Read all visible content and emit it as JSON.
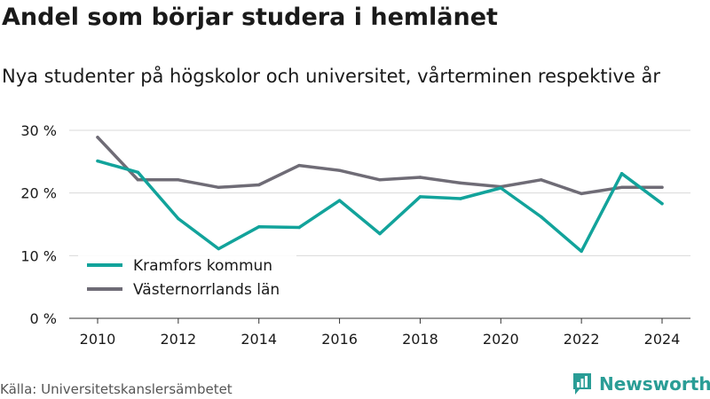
{
  "header": {
    "title": "Andel som börjar studera i hemlänet",
    "subtitle": "Nya studenter på högskolor och universitet, vårterminen respektive år"
  },
  "footer": {
    "source": "Källa: Universitetskanslersämbetet",
    "brand": "Newsworthy",
    "brand_icon": "bar-chart-logo-icon"
  },
  "colors": {
    "kramfors": "#12a39b",
    "vasternorrland": "#6f6c76",
    "grid": "#d9d9d9",
    "brand": "#2a9d96"
  },
  "chart_data": {
    "type": "line",
    "x": [
      2010,
      2011,
      2012,
      2013,
      2014,
      2015,
      2016,
      2017,
      2018,
      2019,
      2020,
      2021,
      2022,
      2023,
      2024
    ],
    "series": [
      {
        "name": "Kramfors kommun",
        "values": [
          25.1,
          23.3,
          15.9,
          11.1,
          14.6,
          14.5,
          18.8,
          13.5,
          19.4,
          19.1,
          20.8,
          16.2,
          10.7,
          23.1,
          18.3
        ]
      },
      {
        "name": "Västernorrlands län",
        "values": [
          28.9,
          22.1,
          22.1,
          20.9,
          21.3,
          24.4,
          23.6,
          22.1,
          22.5,
          21.6,
          21.0,
          22.1,
          19.9,
          20.9,
          20.9
        ]
      }
    ],
    "x_ticks": [
      2010,
      2012,
      2014,
      2016,
      2018,
      2020,
      2022,
      2024
    ],
    "x_tick_labels": [
      "2010",
      "2012",
      "2014",
      "2016",
      "2018",
      "2020",
      "2022",
      "2024"
    ],
    "y_ticks": [
      0,
      10,
      20,
      30
    ],
    "y_tick_labels": [
      "0 %",
      "10 %",
      "20 %",
      "30 %"
    ],
    "ylim": [
      0,
      30
    ],
    "xlim": [
      2010,
      2024
    ],
    "grid": true,
    "legend_position": "bottom-left"
  }
}
